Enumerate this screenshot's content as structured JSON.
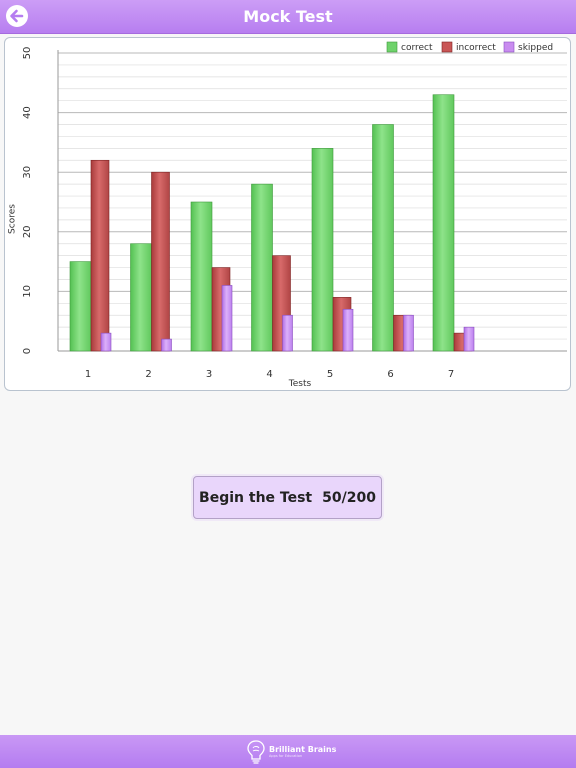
{
  "header": {
    "title": "Mock Test"
  },
  "action": {
    "test_label": "Begin the Test",
    "progress_label": "50/200"
  },
  "footer": {
    "brand": "Brilliant Brains",
    "tagline": "Apps for Education"
  },
  "colors": {
    "accent": "#bb84f2",
    "correct": "#6dd36a",
    "incorrect": "#c75555",
    "skipped": "#c88bf0"
  },
  "icons": {
    "back": "arrow-left-circle-icon",
    "logo": "brain-bulb-icon"
  },
  "chart_data": {
    "type": "bar",
    "categories": [
      "1",
      "2",
      "3",
      "4",
      "5",
      "6",
      "7"
    ],
    "series": [
      {
        "name": "correct",
        "values": [
          15,
          18,
          25,
          28,
          34,
          38,
          43
        ]
      },
      {
        "name": "incorrect",
        "values": [
          32,
          30,
          14,
          16,
          9,
          6,
          3
        ]
      },
      {
        "name": "skipped",
        "values": [
          3,
          2,
          11,
          6,
          7,
          6,
          4
        ]
      }
    ],
    "xlabel": "Tests",
    "ylabel": "Scores",
    "ylim": [
      0,
      50
    ],
    "yticks": [
      0,
      10,
      20,
      30,
      40,
      50
    ],
    "grid": true,
    "legend_position": "top-right"
  }
}
